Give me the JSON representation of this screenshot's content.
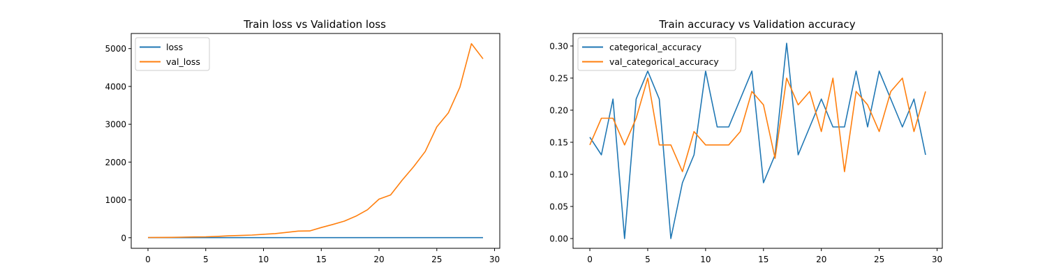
{
  "chart_data": [
    {
      "type": "line",
      "title": "Train loss vs Validation loss",
      "xlabel": "",
      "ylabel": "",
      "xlim": [
        -1.45,
        30.45
      ],
      "ylim": [
        -280,
        5400
      ],
      "xticks": [
        0,
        5,
        10,
        15,
        20,
        25,
        30
      ],
      "yticks": [
        0,
        1000,
        2000,
        3000,
        4000,
        5000
      ],
      "x": [
        0,
        1,
        2,
        3,
        4,
        5,
        6,
        7,
        8,
        9,
        10,
        11,
        12,
        13,
        14,
        15,
        16,
        17,
        18,
        19,
        20,
        21,
        22,
        23,
        24,
        25,
        26,
        27,
        28,
        29
      ],
      "series": [
        {
          "name": "loss",
          "color": "#1f77b4",
          "values": [
            1.8,
            1.7,
            1.7,
            1.7,
            1.7,
            1.7,
            1.7,
            1.7,
            1.7,
            1.7,
            1.7,
            1.7,
            1.7,
            1.7,
            1.7,
            1.7,
            1.7,
            1.7,
            1.7,
            1.7,
            1.7,
            1.7,
            1.7,
            1.7,
            1.7,
            1.7,
            1.7,
            1.7,
            1.7,
            1.7
          ]
        },
        {
          "name": "val_loss",
          "color": "#ff7f0e",
          "values": [
            5,
            8,
            10,
            15,
            20,
            25,
            35,
            50,
            60,
            70,
            90,
            110,
            140,
            175,
            180,
            270,
            350,
            440,
            570,
            740,
            1020,
            1130,
            1520,
            1880,
            2280,
            2930,
            3300,
            3980,
            5130,
            4730
          ]
        }
      ],
      "legend": "upper-left",
      "grid": false
    },
    {
      "type": "line",
      "title": "Train accuracy vs Validation accuracy",
      "xlabel": "",
      "ylabel": "",
      "xlim": [
        -1.45,
        30.45
      ],
      "ylim": [
        -0.0152,
        0.3195
      ],
      "xticks": [
        0,
        5,
        10,
        15,
        20,
        25,
        30
      ],
      "yticks": [
        0.0,
        0.05,
        0.1,
        0.15,
        0.2,
        0.25,
        0.3
      ],
      "ytick_format": 2,
      "x": [
        0,
        1,
        2,
        3,
        4,
        5,
        6,
        7,
        8,
        9,
        10,
        11,
        12,
        13,
        14,
        15,
        16,
        17,
        18,
        19,
        20,
        21,
        22,
        23,
        24,
        25,
        26,
        27,
        28,
        29
      ],
      "series": [
        {
          "name": "categorical_accuracy",
          "color": "#1f77b4",
          "values": [
            0.1579,
            0.1304,
            0.2174,
            0.0,
            0.2174,
            0.2609,
            0.2174,
            0.0,
            0.087,
            0.1304,
            0.2609,
            0.1739,
            0.1739,
            0.2174,
            0.2609,
            0.087,
            0.1304,
            0.3043,
            0.1304,
            0.1739,
            0.2174,
            0.1739,
            0.1739,
            0.2609,
            0.1739,
            0.2609,
            0.2174,
            0.1739,
            0.2174,
            0.1304
          ]
        },
        {
          "name": "val_categorical_accuracy",
          "color": "#ff7f0e",
          "values": [
            0.1458,
            0.1875,
            0.1875,
            0.1458,
            0.1875,
            0.25,
            0.1458,
            0.1458,
            0.1042,
            0.1667,
            0.1458,
            0.1458,
            0.1458,
            0.1667,
            0.2292,
            0.2083,
            0.125,
            0.25,
            0.2083,
            0.2292,
            0.1667,
            0.25,
            0.1042,
            0.2292,
            0.2083,
            0.1667,
            0.2292,
            0.25,
            0.1667,
            0.2292
          ]
        }
      ],
      "legend": "upper-left",
      "grid": false
    }
  ]
}
